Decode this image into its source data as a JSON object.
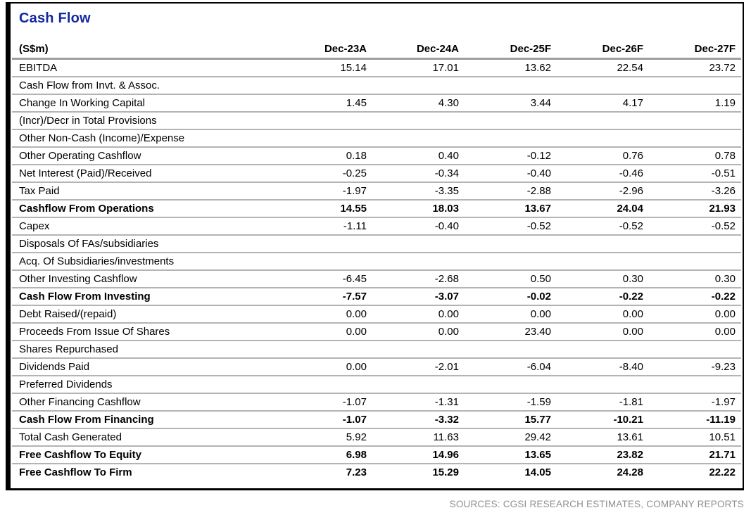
{
  "chart_data": {
    "type": "table",
    "title": "Cash Flow",
    "unit_label": "(S$m)",
    "columns": [
      "Dec-23A",
      "Dec-24A",
      "Dec-25F",
      "Dec-26F",
      "Dec-27F"
    ],
    "rows": [
      {
        "label": "EBITDA",
        "bold": false,
        "values": [
          "15.14",
          "17.01",
          "13.62",
          "22.54",
          "23.72"
        ]
      },
      {
        "label": "Cash Flow from Invt. & Assoc.",
        "bold": false,
        "values": [
          "",
          "",
          "",
          "",
          ""
        ]
      },
      {
        "label": "Change In Working Capital",
        "bold": false,
        "values": [
          "1.45",
          "4.30",
          "3.44",
          "4.17",
          "1.19"
        ]
      },
      {
        "label": "(Incr)/Decr in Total Provisions",
        "bold": false,
        "values": [
          "",
          "",
          "",
          "",
          ""
        ]
      },
      {
        "label": "Other Non-Cash (Income)/Expense",
        "bold": false,
        "values": [
          "",
          "",
          "",
          "",
          ""
        ]
      },
      {
        "label": "Other Operating Cashflow",
        "bold": false,
        "values": [
          "0.18",
          "0.40",
          "-0.12",
          "0.76",
          "0.78"
        ]
      },
      {
        "label": "Net Interest (Paid)/Received",
        "bold": false,
        "values": [
          "-0.25",
          "-0.34",
          "-0.40",
          "-0.46",
          "-0.51"
        ]
      },
      {
        "label": "Tax Paid",
        "bold": false,
        "values": [
          "-1.97",
          "-3.35",
          "-2.88",
          "-2.96",
          "-3.26"
        ]
      },
      {
        "label": "Cashflow From Operations",
        "bold": true,
        "values": [
          "14.55",
          "18.03",
          "13.67",
          "24.04",
          "21.93"
        ]
      },
      {
        "label": "Capex",
        "bold": false,
        "values": [
          "-1.11",
          "-0.40",
          "-0.52",
          "-0.52",
          "-0.52"
        ]
      },
      {
        "label": "Disposals Of FAs/subsidiaries",
        "bold": false,
        "values": [
          "",
          "",
          "",
          "",
          ""
        ]
      },
      {
        "label": "Acq. Of Subsidiaries/investments",
        "bold": false,
        "values": [
          "",
          "",
          "",
          "",
          ""
        ]
      },
      {
        "label": "Other Investing Cashflow",
        "bold": false,
        "values": [
          "-6.45",
          "-2.68",
          "0.50",
          "0.30",
          "0.30"
        ]
      },
      {
        "label": "Cash Flow From Investing",
        "bold": true,
        "values": [
          "-7.57",
          "-3.07",
          "-0.02",
          "-0.22",
          "-0.22"
        ]
      },
      {
        "label": "Debt Raised/(repaid)",
        "bold": false,
        "values": [
          "0.00",
          "0.00",
          "0.00",
          "0.00",
          "0.00"
        ]
      },
      {
        "label": "Proceeds From Issue Of Shares",
        "bold": false,
        "values": [
          "0.00",
          "0.00",
          "23.40",
          "0.00",
          "0.00"
        ]
      },
      {
        "label": "Shares Repurchased",
        "bold": false,
        "values": [
          "",
          "",
          "",
          "",
          ""
        ]
      },
      {
        "label": "Dividends Paid",
        "bold": false,
        "values": [
          "0.00",
          "-2.01",
          "-6.04",
          "-8.40",
          "-9.23"
        ]
      },
      {
        "label": "Preferred Dividends",
        "bold": false,
        "values": [
          "",
          "",
          "",
          "",
          ""
        ]
      },
      {
        "label": "Other Financing Cashflow",
        "bold": false,
        "values": [
          "-1.07",
          "-1.31",
          "-1.59",
          "-1.81",
          "-1.97"
        ]
      },
      {
        "label": "Cash Flow From Financing",
        "bold": true,
        "values": [
          "-1.07",
          "-3.32",
          "15.77",
          "-10.21",
          "-11.19"
        ]
      },
      {
        "label": "Total Cash Generated",
        "bold": false,
        "values": [
          "5.92",
          "11.63",
          "29.42",
          "13.61",
          "10.51"
        ]
      },
      {
        "label": "Free Cashflow To Equity",
        "bold": true,
        "values": [
          "6.98",
          "14.96",
          "13.65",
          "23.82",
          "21.71"
        ]
      },
      {
        "label": "Free Cashflow To Firm",
        "bold": true,
        "values": [
          "7.23",
          "15.29",
          "14.05",
          "24.28",
          "22.22"
        ]
      }
    ],
    "source_note": "SOURCES: CGSI RESEARCH ESTIMATES, COMPANY REPORTS",
    "layout": {
      "value_alignment": "right",
      "grid": "horizontal-separators"
    }
  },
  "colors": {
    "title": "#1428a0",
    "frame_border": "#000000",
    "separator": "#b4b4b4",
    "header_line": "#9e9e9e",
    "source_text": "#8f8f8f"
  }
}
